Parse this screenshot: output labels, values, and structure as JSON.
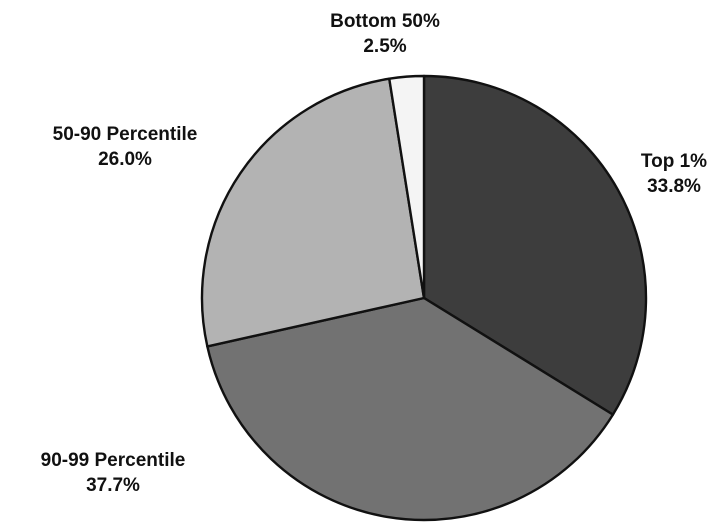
{
  "chart_data": {
    "type": "pie",
    "title": "",
    "start": "12 o'clock",
    "direction": "clockwise",
    "slices": [
      {
        "name": "Top 1%",
        "label": "33.8%",
        "value": 33.8,
        "color": "#3d3d3d"
      },
      {
        "name": "90-99 Percentile",
        "label": "37.7%",
        "value": 37.7,
        "color": "#727272"
      },
      {
        "name": "50-90 Percentile",
        "label": "26.0%",
        "value": 26.0,
        "color": "#b3b3b3"
      },
      {
        "name": "Bottom 50%",
        "label": "2.5%",
        "value": 2.5,
        "color": "#f4f4f4"
      }
    ]
  }
}
